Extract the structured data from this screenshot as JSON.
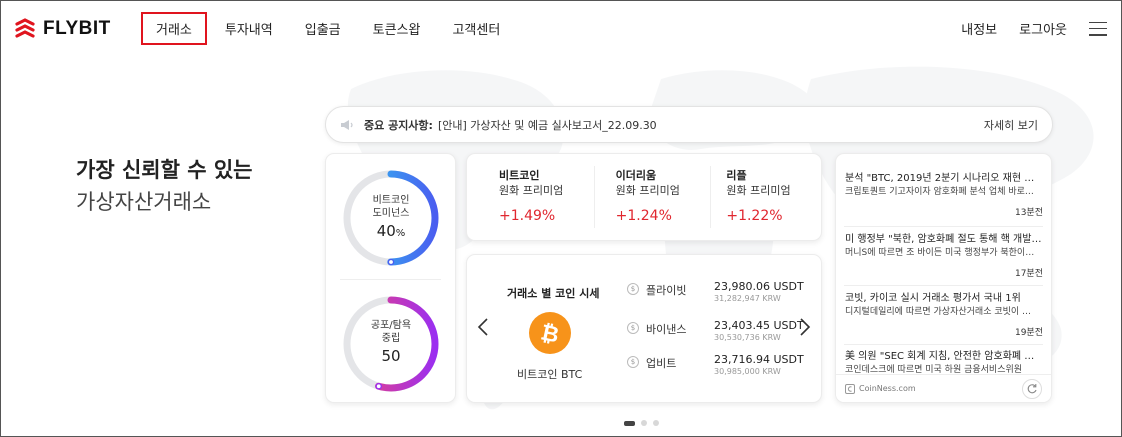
{
  "header": {
    "logo_text": "FLYBIT",
    "nav": [
      {
        "label": "거래소",
        "active": true
      },
      {
        "label": "투자내역"
      },
      {
        "label": "입출금"
      },
      {
        "label": "토큰스왑"
      },
      {
        "label": "고객센터"
      }
    ],
    "my_info": "내정보",
    "logout": "로그아웃"
  },
  "hero": {
    "line1": "가장 신뢰할 수 있는",
    "line2": "가상자산거래소"
  },
  "notice": {
    "label": "중요 공지사항:",
    "text": "[안내] 가상자산 및 예금 실사보고서_22.09.30",
    "more": "자세히 보기"
  },
  "gauges": {
    "dominance": {
      "label1": "비트코인",
      "label2": "도미넌스",
      "value": "40",
      "unit": "%",
      "level": 0.4
    },
    "fear_greed": {
      "label1": "공포/탐욕",
      "label2": "중립",
      "value": "50",
      "level": 0.5
    }
  },
  "premiums": [
    {
      "name": "비트코인",
      "sub": "원화 프리미엄",
      "pct": "+1.49%"
    },
    {
      "name": "이더리움",
      "sub": "원화 프리미엄",
      "pct": "+1.24%"
    },
    {
      "name": "리플",
      "sub": "원화 프리미엄",
      "pct": "+1.22%"
    }
  ],
  "exchange": {
    "title": "거래소 별 코인 시세",
    "coin_name": "비트코인 BTC",
    "rows": [
      {
        "name": "플라이빗",
        "usdt": "23,980.06 USDT",
        "krw": "31,282,947 KRW"
      },
      {
        "name": "바이낸스",
        "usdt": "23,403.45 USDT",
        "krw": "30,530,736 KRW"
      },
      {
        "name": "업비트",
        "usdt": "23,716.94 USDT",
        "krw": "30,985,000 KRW"
      }
    ]
  },
  "news": {
    "items": [
      {
        "title": "분석 \"BTC, 2019년 2분기 시나리오 재현 시…",
        "desc": "크립토퀀트 기고자이자 암호화폐 분석 업체 바로…",
        "time": "13분전"
      },
      {
        "title": "미 행정부 \"북한, 암호화폐 절도 통해 핵 개발 …",
        "desc": "머니S에 따르면 조 바이든 미국 행정부가 북한이…",
        "time": "17분전"
      },
      {
        "title": "코빗, 카이코 실시 거래소 평가서 국내 1위",
        "desc": "디지털데일리에 따르면 가상자산거래소 코빗이 …",
        "time": "19분전"
      },
      {
        "title": "美 의원 \"SEC 회계 지침, 안전한 암호화폐 자…",
        "desc": "코인데스크에 따르면 미국 하원 금융서비스위원",
        "time": ""
      }
    ],
    "source": "CoinNess.com"
  },
  "colors": {
    "accent_red": "#e0141e",
    "premium_red": "#e0272f",
    "btc_orange": "#f7931a"
  }
}
